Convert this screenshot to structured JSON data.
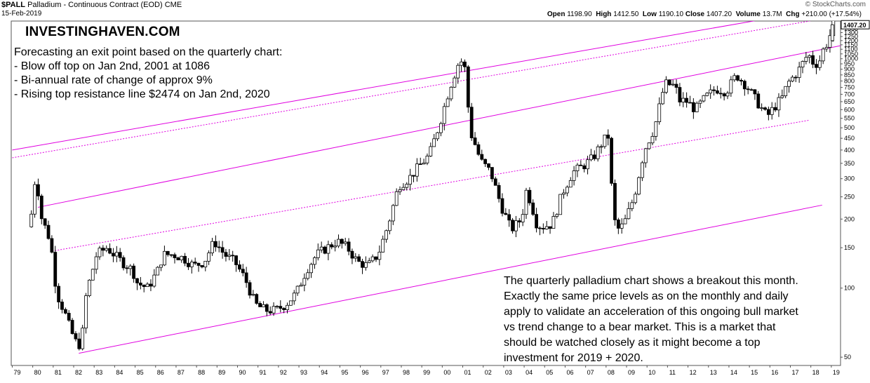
{
  "header": {
    "symbol": "$PALL",
    "description": "Palladium - Continuous Contract (EOD)",
    "exchange": "CME",
    "date": "15-Feb-2019",
    "credit": "© StockCharts.com",
    "open_label": "Open",
    "open": "1198.90",
    "high_label": "High",
    "high": "1412.50",
    "low_label": "Low",
    "low": "1190.10",
    "close_label": "Close",
    "close": "1407.20",
    "volume_label": "Volume",
    "volume": "13.7M",
    "chg_label": "Chg",
    "chg": "+210.00 (+17.54%)"
  },
  "brand": "INVESTINGHAVEN.COM",
  "notes": [
    "Forecasting an exit point based on the quarterly chart:",
    "- Blow off top on Jan 2nd, 2001 at 1086",
    "- Bi-annual rate of change of approx 9%",
    "- Rising top resistance line $2474 on Jan 2nd, 2020"
  ],
  "commentary": "The quarterly palladium chart shows a breakout this month. Exactly the same price levels as on the monthly and daily apply to validate an acceleration of this ongoing bull market vs trend change to a bear market. This is a market that should be watched closely as it might become a top investment for 2019 + 2020.",
  "colors": {
    "trendline": "#e000e0",
    "up": "#ffffff",
    "down": "#000000",
    "frame": "#555555"
  },
  "chart_data": {
    "type": "candlestick",
    "scale": "log",
    "ylim": [
      46,
      1460
    ],
    "xlim": [
      1979.0,
      2019.5
    ],
    "y_ticks": [
      50,
      100,
      150,
      200,
      250,
      300,
      350,
      400,
      450,
      500,
      550,
      600,
      650,
      700,
      750,
      800,
      850,
      900,
      950,
      1000,
      1050,
      1100,
      1150,
      1200,
      1250,
      1300,
      1350
    ],
    "x_ticks": [
      "79",
      "80",
      "81",
      "82",
      "83",
      "84",
      "85",
      "86",
      "87",
      "88",
      "89",
      "90",
      "91",
      "92",
      "93",
      "94",
      "95",
      "96",
      "97",
      "98",
      "99",
      "00",
      "01",
      "02",
      "03",
      "04",
      "05",
      "06",
      "07",
      "08",
      "09",
      "10",
      "11",
      "12",
      "13",
      "14",
      "15",
      "16",
      "17",
      "18",
      "19"
    ],
    "last_price_label": "1407.20",
    "anchors": [
      [
        1980.0,
        185
      ],
      [
        1980.3,
        330
      ],
      [
        1980.5,
        210
      ],
      [
        1981.0,
        160
      ],
      [
        1981.3,
        95
      ],
      [
        1981.7,
        78
      ],
      [
        1982.0,
        65
      ],
      [
        1982.25,
        58
      ],
      [
        1982.5,
        56
      ],
      [
        1982.75,
        95
      ],
      [
        1983.25,
        140
      ],
      [
        1983.75,
        150
      ],
      [
        1984.5,
        130
      ],
      [
        1985.0,
        120
      ],
      [
        1985.25,
        105
      ],
      [
        1985.75,
        100
      ],
      [
        1986.25,
        120
      ],
      [
        1986.5,
        140
      ],
      [
        1987.0,
        140
      ],
      [
        1987.5,
        135
      ],
      [
        1988.0,
        125
      ],
      [
        1988.5,
        130
      ],
      [
        1989.0,
        160
      ],
      [
        1989.5,
        140
      ],
      [
        1990.0,
        130
      ],
      [
        1990.5,
        110
      ],
      [
        1991.0,
        85
      ],
      [
        1991.5,
        80
      ],
      [
        1992.0,
        80
      ],
      [
        1992.5,
        85
      ],
      [
        1993.0,
        95
      ],
      [
        1993.5,
        120
      ],
      [
        1994.0,
        140
      ],
      [
        1994.5,
        150
      ],
      [
        1995.0,
        160
      ],
      [
        1995.5,
        150
      ],
      [
        1996.0,
        130
      ],
      [
        1996.5,
        125
      ],
      [
        1997.0,
        140
      ],
      [
        1997.5,
        190
      ],
      [
        1998.0,
        280
      ],
      [
        1998.5,
        300
      ],
      [
        1999.0,
        340
      ],
      [
        1999.5,
        380
      ],
      [
        2000.0,
        520
      ],
      [
        2000.5,
        750
      ],
      [
        2001.0,
        1000
      ],
      [
        2001.25,
        900
      ],
      [
        2001.5,
        480
      ],
      [
        2001.75,
        420
      ],
      [
        2002.0,
        360
      ],
      [
        2002.5,
        320
      ],
      [
        2003.0,
        230
      ],
      [
        2003.5,
        180
      ],
      [
        2004.0,
        200
      ],
      [
        2004.25,
        270
      ],
      [
        2004.5,
        230
      ],
      [
        2004.75,
        190
      ],
      [
        2005.0,
        185
      ],
      [
        2005.5,
        190
      ],
      [
        2006.0,
        260
      ],
      [
        2006.5,
        320
      ],
      [
        2007.0,
        340
      ],
      [
        2007.5,
        370
      ],
      [
        2008.0,
        440
      ],
      [
        2008.25,
        460
      ],
      [
        2008.5,
        200
      ],
      [
        2008.75,
        180
      ],
      [
        2009.0,
        190
      ],
      [
        2009.5,
        250
      ],
      [
        2010.0,
        400
      ],
      [
        2010.5,
        500
      ],
      [
        2011.0,
        780
      ],
      [
        2011.5,
        760
      ],
      [
        2011.75,
        650
      ],
      [
        2012.0,
        660
      ],
      [
        2012.5,
        600
      ],
      [
        2013.0,
        680
      ],
      [
        2013.5,
        740
      ],
      [
        2014.0,
        720
      ],
      [
        2014.5,
        850
      ],
      [
        2015.0,
        760
      ],
      [
        2015.5,
        650
      ],
      [
        2016.0,
        560
      ],
      [
        2016.25,
        600
      ],
      [
        2016.75,
        680
      ],
      [
        2017.0,
        780
      ],
      [
        2017.5,
        880
      ],
      [
        2018.0,
        1050
      ],
      [
        2018.25,
        960
      ],
      [
        2018.5,
        950
      ],
      [
        2018.75,
        1100
      ],
      [
        2019.0,
        1200
      ],
      [
        2019.2,
        1407.2
      ]
    ],
    "trendlines": [
      {
        "style": "solid",
        "points": [
          [
            1979.05,
            400
          ],
          [
            2019.5,
            1700
          ]
        ]
      },
      {
        "style": "dashed",
        "points": [
          [
            1979.05,
            370
          ],
          [
            2019.5,
            1540
          ]
        ]
      },
      {
        "style": "solid",
        "points": [
          [
            1980.3,
            225
          ],
          [
            2019.5,
            1140
          ]
        ]
      },
      {
        "style": "dashed",
        "points": [
          [
            1981.0,
            145
          ],
          [
            2018.0,
            540
          ]
        ]
      },
      {
        "style": "solid",
        "points": [
          [
            1982.3,
            52
          ],
          [
            2018.6,
            230
          ]
        ]
      }
    ]
  }
}
